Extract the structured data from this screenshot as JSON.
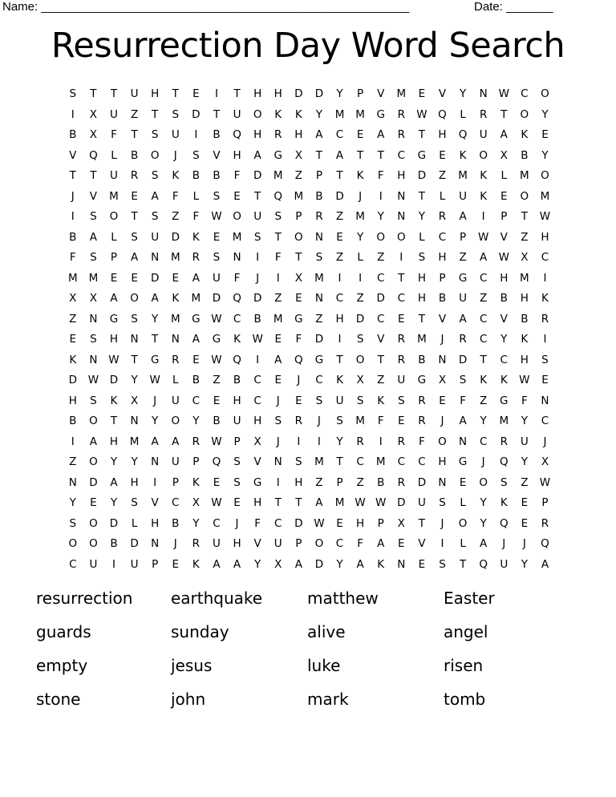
{
  "header": {
    "name_label": "Name: _______________________________________________________",
    "date_label": "Date: _______"
  },
  "title": "Resurrection Day Word Search",
  "grid": [
    "STTUHTEITHHDDYPVMEVYNWCO",
    "IXUZTSDTUOKKYMMGRWQLRTOY",
    "BXFTSUIBQHRHACEARTHQUAKE",
    "VQLBOJSVHAGXTATTCGEKOXBY",
    "TTURSKBBFDMZPTKFHDZMKLMO",
    "JVMEAFLSETQMBDJINTLUKEOM",
    "ISOTSZFWOUSPRZMYNYRAIPTW",
    "BALSUDKEMSTONEYOOLCPWVZH",
    "FSPANMRSNIFTSZLZISHZAWXC",
    "MMEEDEAUFJIXMIICTHPGCHMI",
    "XXAOAKMDQDZENCZDCHBUZBHK",
    "ZNGSYMGWCBMGZHDCETVACVBR",
    "ESHNTNAGKWEFDISVRMJRCYKI",
    "KNWTGREWQIAQGTOTRBNDTCHS",
    "DWDYWLBZBCEJCKXZUGXSKKWE",
    "HSKXJUCEHCJESUSKSREFZGFN",
    "BOTNYOYBUHSRJSMFERJAYMYC",
    "IAHMAARWPXJIIYRIRFONCRUJ",
    "ZOYYNUPQSVNSMTCMCCHGJQYX",
    "NDAHIPKESGIHZPZBRDNEOSZW",
    "YEYSVCXWEHTTAMWWDUSLYKEP",
    "SODLHBYCJFCDWEHPXTJOYQER",
    "OOBDNJRUHVUPOCFAEVILAJJQ",
    "CUIUPEKAAYXADYAKNESTQUYA"
  ],
  "words": [
    "resurrection",
    "earthquake",
    "matthew",
    "Easter",
    "guards",
    "sunday",
    "alive",
    "angel",
    "empty",
    "jesus",
    "luke",
    "risen",
    "stone",
    "john",
    "mark",
    "tomb"
  ]
}
